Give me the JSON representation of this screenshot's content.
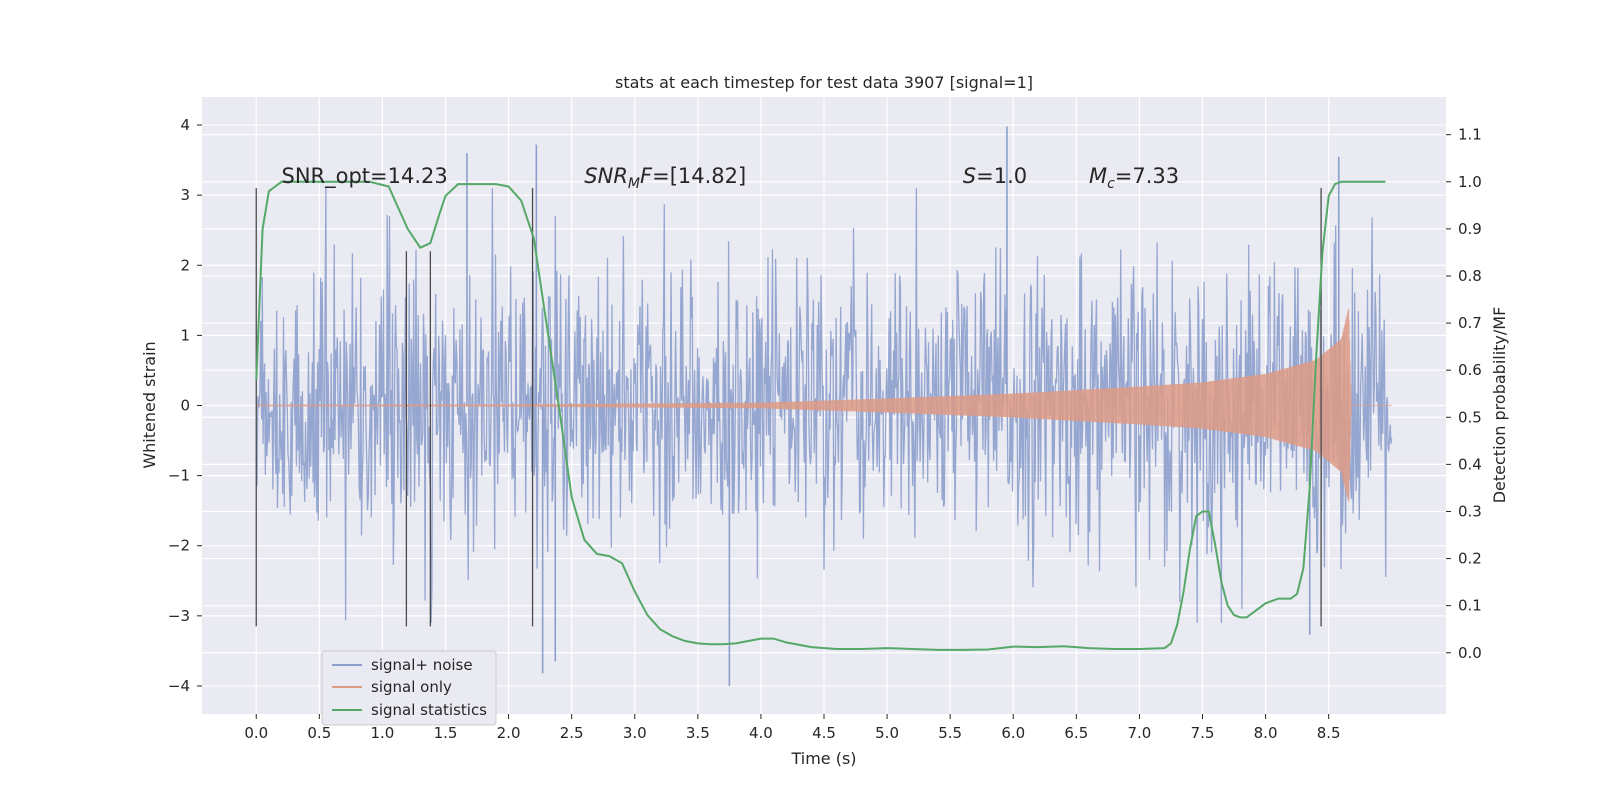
{
  "chart_data": {
    "type": "line",
    "title": "stats at each timestep for test data 3907 [signal=1]",
    "xlabel": "Time (s)",
    "ylabel": "Whitened strain",
    "y2label": "Detection probability/MF",
    "xlim": [
      -0.43,
      9.43
    ],
    "ylim": [
      -4.4,
      4.4
    ],
    "y2lim": [
      -0.13,
      1.18
    ],
    "x_ticks": [
      0.0,
      0.5,
      1.0,
      1.5,
      2.0,
      2.5,
      3.0,
      3.5,
      4.0,
      4.5,
      5.0,
      5.5,
      6.0,
      6.5,
      7.0,
      7.5,
      8.0,
      8.5
    ],
    "x_tick_labels": [
      "0.0",
      "0.5",
      "1.0",
      "1.5",
      "2.0",
      "2.5",
      "3.0",
      "3.5",
      "4.0",
      "4.5",
      "5.0",
      "5.5",
      "6.0",
      "6.5",
      "7.0",
      "7.5",
      "8.0",
      "8.5"
    ],
    "y_ticks": [
      4,
      3,
      2,
      1,
      0,
      -1,
      -2,
      -3,
      -4
    ],
    "y_tick_labels": [
      "4",
      "3",
      "2",
      "1",
      "0",
      "−1",
      "−2",
      "−3",
      "−4"
    ],
    "y2_ticks": [
      1.1,
      1.0,
      0.9,
      0.8,
      0.7,
      0.6,
      0.5,
      0.4,
      0.3,
      0.2,
      0.1,
      0.0
    ],
    "y2_tick_labels": [
      "1.1",
      "1.0",
      "0.9",
      "0.8",
      "0.7",
      "0.6",
      "0.5",
      "0.4",
      "0.3",
      "0.2",
      "0.1",
      "0.0"
    ],
    "grid": true,
    "legend_position": "lower-left",
    "series": [
      {
        "name": "signal+ noise",
        "color": "#8c9fcc",
        "axis": "left",
        "kind": "noise",
        "t_start": 0.0,
        "t_end": 9.0,
        "typical_envelope": 1.8,
        "max": 3.98,
        "min": -4.0,
        "peaks": [
          [
            1.67,
            3.6
          ],
          [
            2.22,
            3.72
          ],
          [
            5.95,
            3.98
          ],
          [
            8.58,
            3.55
          ],
          [
            3.75,
            -4.0
          ],
          [
            2.27,
            -3.82
          ],
          [
            2.37,
            -3.65
          ],
          [
            8.35,
            -3.27
          ]
        ]
      },
      {
        "name": "signal only",
        "color": "#dd9a85",
        "axis": "left",
        "kind": "chirp",
        "t_start": 0.0,
        "t_end": 8.68,
        "amplitude_points": [
          [
            0.0,
            0.01
          ],
          [
            2.0,
            0.015
          ],
          [
            4.0,
            0.04
          ],
          [
            5.0,
            0.1
          ],
          [
            6.0,
            0.17
          ],
          [
            7.0,
            0.27
          ],
          [
            7.5,
            0.33
          ],
          [
            8.0,
            0.45
          ],
          [
            8.4,
            0.65
          ],
          [
            8.6,
            0.95
          ],
          [
            8.66,
            1.4
          ],
          [
            8.68,
            0.0
          ]
        ]
      },
      {
        "name": "signal statistics",
        "color": "#55a868",
        "axis": "right",
        "kind": "line",
        "x": [
          0.0,
          0.05,
          0.1,
          0.15,
          0.2,
          0.3,
          0.5,
          0.7,
          0.9,
          1.05,
          1.1,
          1.2,
          1.3,
          1.38,
          1.45,
          1.5,
          1.6,
          1.7,
          1.9,
          2.0,
          2.1,
          2.2,
          2.3,
          2.4,
          2.5,
          2.6,
          2.7,
          2.8,
          2.9,
          3.0,
          3.1,
          3.2,
          3.3,
          3.4,
          3.5,
          3.6,
          3.7,
          3.8,
          3.9,
          4.0,
          4.1,
          4.2,
          4.4,
          4.6,
          4.8,
          5.0,
          5.2,
          5.4,
          5.6,
          5.8,
          6.0,
          6.2,
          6.4,
          6.6,
          6.8,
          7.0,
          7.2,
          7.25,
          7.3,
          7.35,
          7.4,
          7.45,
          7.5,
          7.55,
          7.6,
          7.65,
          7.7,
          7.75,
          7.8,
          7.85,
          7.9,
          8.0,
          8.1,
          8.2,
          8.25,
          8.3,
          8.35,
          8.4,
          8.45,
          8.5,
          8.55,
          8.6,
          8.7,
          8.8,
          8.9,
          8.95
        ],
        "values": [
          0.58,
          0.9,
          0.98,
          0.99,
          1.0,
          1.0,
          1.0,
          1.0,
          1.0,
          0.99,
          0.96,
          0.9,
          0.86,
          0.87,
          0.93,
          0.97,
          0.995,
          0.995,
          0.995,
          0.99,
          0.96,
          0.88,
          0.7,
          0.52,
          0.33,
          0.24,
          0.21,
          0.205,
          0.19,
          0.13,
          0.08,
          0.05,
          0.035,
          0.025,
          0.02,
          0.018,
          0.018,
          0.02,
          0.025,
          0.03,
          0.03,
          0.022,
          0.012,
          0.008,
          0.008,
          0.01,
          0.008,
          0.006,
          0.006,
          0.007,
          0.013,
          0.012,
          0.014,
          0.01,
          0.008,
          0.008,
          0.01,
          0.02,
          0.06,
          0.13,
          0.22,
          0.29,
          0.3,
          0.3,
          0.23,
          0.15,
          0.1,
          0.08,
          0.075,
          0.075,
          0.085,
          0.105,
          0.115,
          0.115,
          0.125,
          0.18,
          0.35,
          0.62,
          0.85,
          0.97,
          0.995,
          1.0,
          1.0,
          1.0,
          1.0,
          1.0
        ]
      }
    ],
    "vertical_lines": [
      {
        "x": 0.0,
        "y_from": -3.15,
        "y_to": 3.1
      },
      {
        "x": 1.19,
        "y_from": -3.15,
        "y_to": 2.2
      },
      {
        "x": 1.38,
        "y_from": -3.15,
        "y_to": 2.2
      },
      {
        "x": 2.19,
        "y_from": -3.15,
        "y_to": 3.1
      },
      {
        "x": 8.44,
        "y_from": -3.15,
        "y_to": 3.1
      }
    ],
    "annotations": [
      {
        "id": "snr-opt",
        "x": 0.2,
        "y": 3.1,
        "text": "SNR_opt=14.23"
      },
      {
        "id": "snr-mf",
        "x": 2.6,
        "y": 3.1,
        "italic": "SNR",
        "sub": "M",
        "rest_italic": "F",
        "suffix": "=[14.82]"
      },
      {
        "id": "s-value",
        "x": 5.6,
        "y": 3.1,
        "italic": "S",
        "suffix": "=1.0"
      },
      {
        "id": "mc-value",
        "x": 6.6,
        "y": 3.1,
        "italic": "M",
        "sub": "c",
        "suffix": "=7.33"
      }
    ]
  }
}
